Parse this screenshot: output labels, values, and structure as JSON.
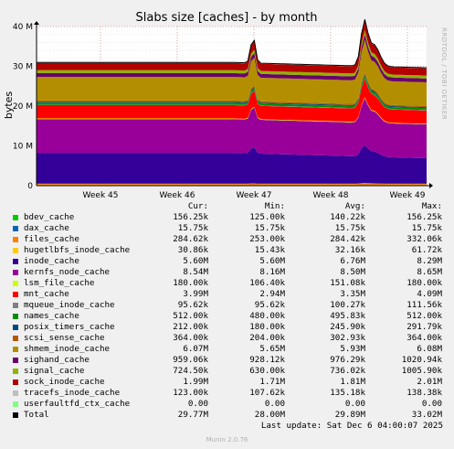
{
  "chart_data": {
    "type": "area",
    "title": "Slabs size [caches] - by month",
    "ylabel": "bytes",
    "ylim": [
      0,
      40000000
    ],
    "y_ticks": [
      {
        "value": 0,
        "label": "0"
      },
      {
        "value": 10000000,
        "label": "10 M"
      },
      {
        "value": 20000000,
        "label": "20 M"
      },
      {
        "value": 30000000,
        "label": "30 M"
      },
      {
        "value": 40000000,
        "label": "40 M"
      }
    ],
    "x_ticks": [
      "Week 45",
      "Week 46",
      "Week 47",
      "Week 48",
      "Week 49"
    ],
    "stacking": "stacked area, ordered bottom-to-top as in legend",
    "columns": [
      "Cur:",
      "Min:",
      "Avg:",
      "Max:"
    ],
    "series": [
      {
        "name": "bdev_cache",
        "color": "#00cc00",
        "cur": "156.25k",
        "min": "125.00k",
        "avg": "140.22k",
        "max": "156.25k"
      },
      {
        "name": "dax_cache",
        "color": "#0066b3",
        "cur": "15.75k",
        "min": "15.75k",
        "avg": "15.75k",
        "max": "15.75k"
      },
      {
        "name": "files_cache",
        "color": "#ff8000",
        "cur": "284.62k",
        "min": "253.00k",
        "avg": "284.42k",
        "max": "332.06k"
      },
      {
        "name": "hugetlbfs_inode_cache",
        "color": "#ffcc00",
        "cur": "30.86k",
        "min": "15.43k",
        "avg": "32.16k",
        "max": "61.72k"
      },
      {
        "name": "inode_cache",
        "color": "#330099",
        "cur": "5.60M",
        "min": "5.60M",
        "avg": "6.76M",
        "max": "8.29M"
      },
      {
        "name": "kernfs_node_cache",
        "color": "#990099",
        "cur": "8.54M",
        "min": "8.16M",
        "avg": "8.50M",
        "max": "8.65M"
      },
      {
        "name": "lsm_file_cache",
        "color": "#ccff00",
        "cur": "180.00k",
        "min": "106.40k",
        "avg": "151.08k",
        "max": "180.00k"
      },
      {
        "name": "mnt_cache",
        "color": "#ff0000",
        "cur": "3.99M",
        "min": "2.94M",
        "avg": "3.35M",
        "max": "4.09M"
      },
      {
        "name": "mqueue_inode_cache",
        "color": "#808080",
        "cur": "95.62k",
        "min": "95.62k",
        "avg": "100.27k",
        "max": "111.56k"
      },
      {
        "name": "names_cache",
        "color": "#008f00",
        "cur": "512.00k",
        "min": "480.00k",
        "avg": "495.83k",
        "max": "512.00k"
      },
      {
        "name": "posix_timers_cache",
        "color": "#00487d",
        "cur": "212.00k",
        "min": "180.00k",
        "avg": "245.90k",
        "max": "291.79k"
      },
      {
        "name": "scsi_sense_cache",
        "color": "#b35a00",
        "cur": "364.00k",
        "min": "204.00k",
        "avg": "302.93k",
        "max": "364.00k"
      },
      {
        "name": "shmem_inode_cache",
        "color": "#b38f00",
        "cur": "6.07M",
        "min": "5.65M",
        "avg": "5.93M",
        "max": "6.08M"
      },
      {
        "name": "sighand_cache",
        "color": "#6b006b",
        "cur": "959.06k",
        "min": "928.12k",
        "avg": "976.29k",
        "max": "1020.94k"
      },
      {
        "name": "signal_cache",
        "color": "#8fb300",
        "cur": "724.50k",
        "min": "630.00k",
        "avg": "736.02k",
        "max": "1005.90k"
      },
      {
        "name": "sock_inode_cache",
        "color": "#b30000",
        "cur": "1.99M",
        "min": "1.71M",
        "avg": "1.81M",
        "max": "2.01M"
      },
      {
        "name": "tracefs_inode_cache",
        "color": "#bebebe",
        "cur": "123.00k",
        "min": "107.62k",
        "avg": "135.18k",
        "max": "138.38k"
      },
      {
        "name": "userfaultfd_ctx_cache",
        "color": "#80ff80",
        "cur": "0.00",
        "min": "0.00",
        "avg": "0.00",
        "max": "0.00"
      },
      {
        "name": "Total",
        "color": "#000000",
        "cur": "29.77M",
        "min": "28.00M",
        "avg": "29.89M",
        "max": "33.02M"
      }
    ]
  },
  "side_label": "RRDTOOL / TOBI OETIKER",
  "last_update": "Last update:  Sat Dec  6 04:00:07 2025",
  "footer": "Munin 2.0.76"
}
